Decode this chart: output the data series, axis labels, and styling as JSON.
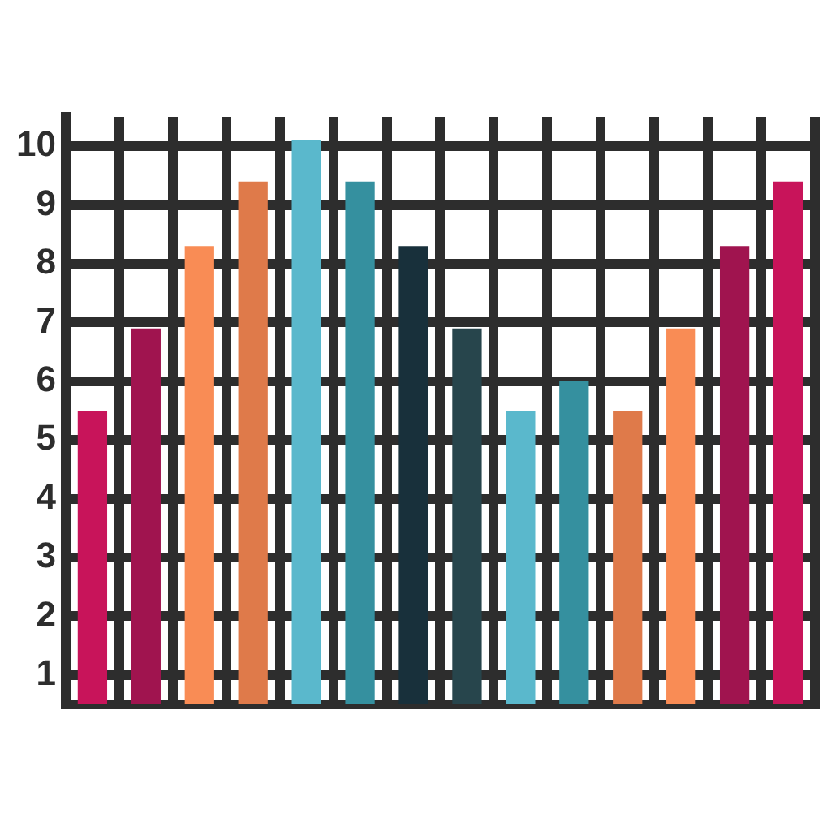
{
  "chart_data": {
    "type": "bar",
    "categories": [
      null,
      null,
      null,
      null,
      null,
      null,
      null,
      null,
      null,
      null,
      null,
      null,
      null,
      null
    ],
    "values": [
      5.5,
      6.9,
      8.3,
      9.4,
      10.1,
      9.4,
      8.3,
      6.9,
      5.5,
      6.0,
      5.5,
      6.9,
      8.3,
      9.4
    ],
    "colors": [
      "#c8145a",
      "#a0144f",
      "#f98c55",
      "#df7a4a",
      "#5ab8cc",
      "#35909f",
      "#18303b",
      "#27454c",
      "#5ab8cc",
      "#35909f",
      "#df7a4a",
      "#f98c55",
      "#a0144f",
      "#c8145a"
    ],
    "ylim": [
      0.5,
      10.5
    ],
    "yticks": [
      1,
      2,
      3,
      4,
      5,
      6,
      7,
      8,
      9,
      10
    ],
    "grid": true,
    "tick_labels": "y"
  }
}
